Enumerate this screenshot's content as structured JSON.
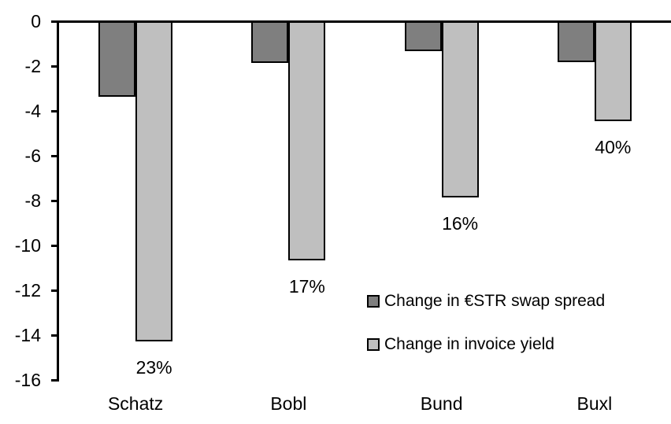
{
  "chart_data": {
    "type": "bar",
    "title": "",
    "xlabel": "",
    "ylabel": "",
    "categories": [
      "Schatz",
      "Bobl",
      "Bund",
      "Buxl"
    ],
    "series": [
      {
        "name": "Change in €STR swap spread",
        "color": "#7F7F7F",
        "values": [
          -3.3,
          -1.8,
          -1.25,
          -1.75
        ]
      },
      {
        "name": "Change in invoice yield",
        "color": "#BFBFBF",
        "values": [
          -14.2,
          -10.6,
          -7.8,
          -4.4
        ]
      }
    ],
    "bar_labels": {
      "series": "Change in invoice yield",
      "values": [
        "23%",
        "17%",
        "16%",
        "40%"
      ]
    },
    "ylim": [
      -16,
      0
    ],
    "yticks": [
      0,
      -2,
      -4,
      -6,
      -8,
      -10,
      -12,
      -14,
      -16
    ],
    "grid": false,
    "legend_position": "inside-right",
    "axis_color": "#000000",
    "bar_border_color": "#000000",
    "text_color": "#000000",
    "background_color": "#FFFFFF"
  }
}
